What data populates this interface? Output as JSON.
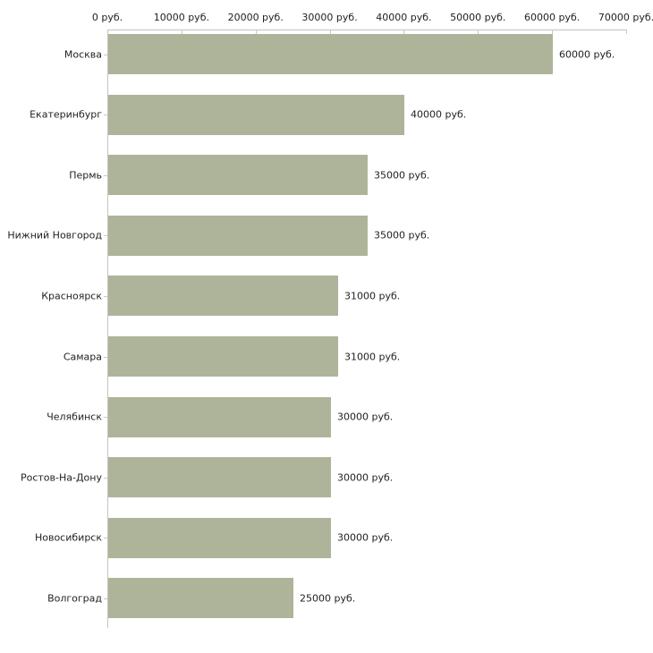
{
  "chart_data": {
    "type": "bar",
    "orientation": "horizontal",
    "title": "",
    "categories": [
      "Москва",
      "Екатеринбург",
      "Пермь",
      "Нижний Новгород",
      "Красноярск",
      "Самара",
      "Челябинск",
      "Ростов-На-Дону",
      "Новосибирск",
      "Волгоград"
    ],
    "values": [
      60000,
      40000,
      35000,
      35000,
      31000,
      31000,
      30000,
      30000,
      30000,
      25000
    ],
    "value_labels": [
      "60000 руб.",
      "40000 руб.",
      "35000 руб.",
      "35000 руб.",
      "31000 руб.",
      "31000 руб.",
      "30000 руб.",
      "30000 руб.",
      "30000 руб.",
      "25000 руб."
    ],
    "xlabel": "",
    "ylabel": "",
    "xlim": [
      0,
      70000
    ],
    "x_axis": {
      "ticks": [
        0,
        10000,
        20000,
        30000,
        40000,
        50000,
        60000,
        70000
      ],
      "tick_labels": [
        "0 руб.",
        "10000 руб.",
        "20000 руб.",
        "30000 руб.",
        "40000 руб.",
        "50000 руб.",
        "60000 руб.",
        "70000 руб."
      ],
      "position": "top"
    },
    "grid": false,
    "legend": false,
    "unit": "руб.",
    "colors": {
      "bar": "#aeb49a",
      "axis": "#c3c3c3",
      "tick": "#cdcab2",
      "text": "#222222",
      "background": "#ffffff"
    }
  }
}
